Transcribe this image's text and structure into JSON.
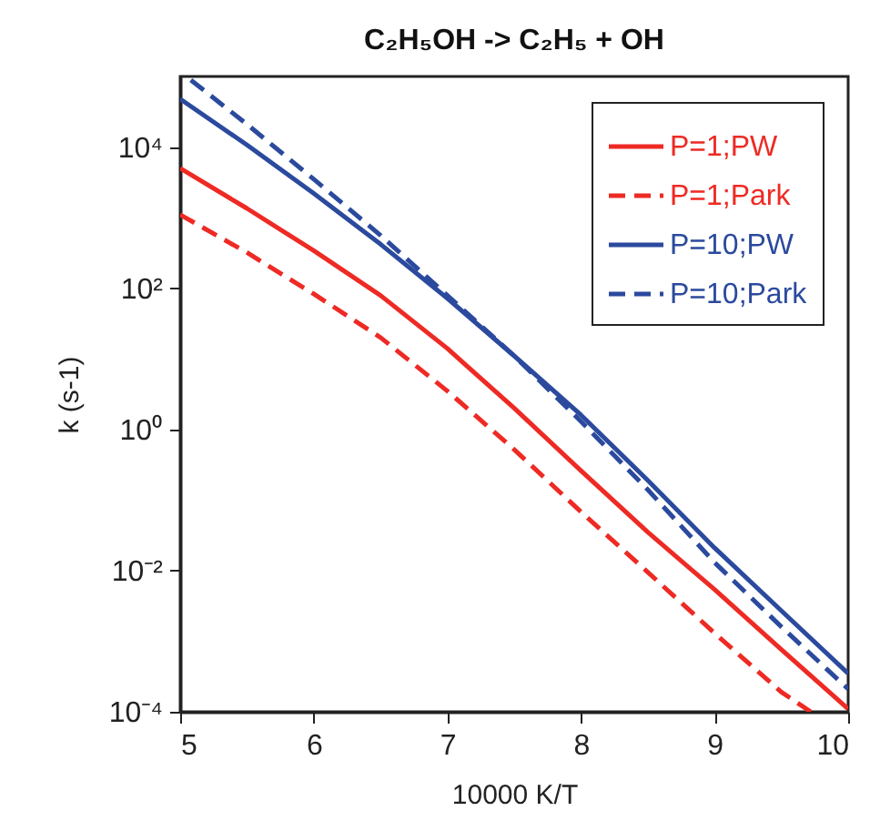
{
  "chart_data": {
    "type": "line",
    "title": "C₂H₅OH -> C₂H₅ + OH",
    "xlabel": "10000 K/T",
    "ylabel": "k (s-1)",
    "log": "y",
    "xlim": [
      5,
      10
    ],
    "ylim": [
      0.0001,
      100000
    ],
    "xticks": [
      5,
      6,
      7,
      8,
      9,
      10
    ],
    "yticks": [
      {
        "value": 0.0001,
        "label": "10⁻⁴"
      },
      {
        "value": 0.01,
        "label": "10⁻²"
      },
      {
        "value": 1,
        "label": "10⁰"
      },
      {
        "value": 100,
        "label": "10²"
      },
      {
        "value": 10000,
        "label": "10⁴"
      }
    ],
    "grid": false,
    "legend": "top right",
    "marker": "none",
    "series": [
      {
        "name": "P=1;PW",
        "color": "#ee2a24",
        "line_style": "solid",
        "x": [
          5,
          5.5,
          6,
          6.5,
          7,
          7.5,
          8,
          8.5,
          9,
          9.5,
          10
        ],
        "values": [
          5000,
          1350,
          340,
          79,
          14,
          2.0,
          0.26,
          0.035,
          0.0054,
          0.00076,
          0.00011
        ]
      },
      {
        "name": "P=1;Park",
        "color": "#ee2a24",
        "line_style": "dashed",
        "x": [
          5,
          5.5,
          6,
          6.5,
          7,
          7.5,
          8,
          8.5,
          9,
          9.5,
          9.72
        ],
        "values": [
          1100,
          320,
          83,
          20,
          3.5,
          0.52,
          0.068,
          0.0095,
          0.0013,
          0.00019,
          0.0001
        ]
      },
      {
        "name": "P=10;PW",
        "color": "#2b4a9e",
        "line_style": "solid",
        "x": [
          5,
          5.5,
          6,
          6.5,
          7,
          7.5,
          8,
          8.5,
          9,
          9.5,
          10
        ],
        "values": [
          48000,
          10700,
          2200,
          420,
          72,
          11,
          1.6,
          0.19,
          0.021,
          0.0027,
          0.00035
        ]
      },
      {
        "name": "P=10;Park",
        "color": "#2b4a9e",
        "line_style": "dashed",
        "x": [
          5.08,
          5.5,
          6,
          6.5,
          7,
          7.5,
          8,
          8.5,
          9,
          9.5,
          10
        ],
        "values": [
          89000,
          21000,
          3500,
          560,
          79,
          11,
          1.3,
          0.14,
          0.013,
          0.0016,
          0.00021
        ]
      }
    ]
  }
}
